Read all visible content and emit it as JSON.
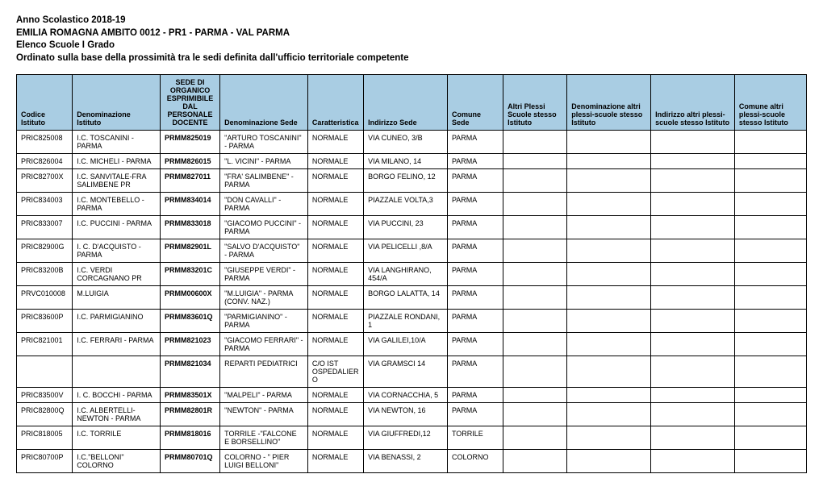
{
  "header": {
    "line1": "Anno Scolastico 2018-19",
    "line2": "EMILIA ROMAGNA AMBITO 0012 - PR1 - PARMA - VAL PARMA",
    "line3": "Elenco Scuole I Grado",
    "line4": "Ordinato sulla base della prossimità tra le sedi definita dall'ufficio territoriale competente"
  },
  "table": {
    "header_bg": "#a9cde3",
    "columns": [
      "Codice Istituto",
      "Denominazione Istituto",
      "SEDE DI ORGANICO ESPRIMIBILE DAL PERSONALE DOCENTE",
      "Denominazione Sede",
      "Caratteristica",
      "Indirizzo Sede",
      "Comune Sede",
      "Altri Plessi Scuole stesso Istituto",
      "Denominazione altri plessi-scuole stesso Istituto",
      "Indirizzo altri plessi-scuole stesso Istituto",
      "Comune altri plessi-scuole stesso Istituto"
    ],
    "rows": [
      [
        "PRIC825008",
        "I.C. TOSCANINI - PARMA",
        "PRMM825019",
        "\"ARTURO TOSCANINI\" - PARMA",
        "NORMALE",
        "VIA CUNEO, 3/B",
        "PARMA",
        "",
        "",
        "",
        ""
      ],
      [
        "PRIC826004",
        "I.C. MICHELI - PARMA",
        "PRMM826015",
        "\"L. VICINI\" - PARMA",
        "NORMALE",
        "VIA MILANO,  14",
        "PARMA",
        "",
        "",
        "",
        ""
      ],
      [
        "PRIC82700X",
        "I.C. SANVITALE-FRA SALIMBENE PR",
        "PRMM827011",
        "\"FRA' SALIMBENE\" - PARMA",
        "NORMALE",
        "BORGO FELINO, 12",
        "PARMA",
        "",
        "",
        "",
        ""
      ],
      [
        "PRIC834003",
        "I.C. MONTEBELLO - PARMA",
        "PRMM834014",
        "\"DON CAVALLI\" - PARMA",
        "NORMALE",
        "PIAZZALE VOLTA,3",
        "PARMA",
        "",
        "",
        "",
        ""
      ],
      [
        "PRIC833007",
        "I.C.  PUCCINI - PARMA",
        "PRMM833018",
        "\"GIACOMO PUCCINI\" - PARMA",
        "NORMALE",
        "VIA PUCCINI, 23",
        "PARMA",
        "",
        "",
        "",
        ""
      ],
      [
        "PRIC82900G",
        "I. C. D'ACQUISTO - PARMA",
        "PRMM82901L",
        "\"SALVO D'ACQUISTO\" - PARMA",
        "NORMALE",
        "VIA PELICELLI ,8/A",
        "PARMA",
        "",
        "",
        "",
        ""
      ],
      [
        "PRIC83200B",
        "I.C. VERDI CORCAGNANO PR",
        "PRMM83201C",
        "\"GIUSEPPE VERDI\" - PARMA",
        "NORMALE",
        "VIA LANGHIRANO, 454/A",
        "PARMA",
        "",
        "",
        "",
        ""
      ],
      [
        "PRVC010008",
        "M.LUIGIA",
        "PRMM00600X",
        "\"M.LUIGIA\" - PARMA (CONV. NAZ.)",
        "NORMALE",
        "BORGO LALATTA, 14",
        "PARMA",
        "",
        "",
        "",
        ""
      ],
      [
        "PRIC83600P",
        "I.C. PARMIGIANINO",
        "PRMM83601Q",
        "\"PARMIGIANINO\" - PARMA",
        "NORMALE",
        "PIAZZALE RONDANI, 1",
        "PARMA",
        "",
        "",
        "",
        ""
      ],
      [
        "PRIC821001",
        "I.C. FERRARI - PARMA",
        "PRMM821023",
        "\"GIACOMO FERRARI\" - PARMA",
        "NORMALE",
        "VIA GALILEI,10/A",
        "PARMA",
        "",
        "",
        "",
        ""
      ],
      [
        "",
        "",
        "PRMM821034",
        "REPARTI PEDIATRICI",
        "C/O IST OSPEDALIERO",
        "VIA GRAMSCI  14",
        "PARMA",
        "",
        "",
        "",
        ""
      ],
      [
        "PRIC83500V",
        "I. C.  BOCCHI -  PARMA",
        "PRMM83501X",
        "\"MALPELI\" - PARMA",
        "NORMALE",
        "VIA CORNACCHIA, 5",
        "PARMA",
        "",
        "",
        "",
        ""
      ],
      [
        "PRIC82800Q",
        "I.C. ALBERTELLI-NEWTON - PARMA",
        "PRMM82801R",
        "\"NEWTON\" - PARMA",
        "NORMALE",
        "VIA NEWTON, 16",
        "PARMA",
        "",
        "",
        "",
        ""
      ],
      [
        "PRIC818005",
        "I.C.  TORRILE",
        "PRMM818016",
        "TORRILE -\"FALCONE E BORSELLINO\"",
        "NORMALE",
        "VIA GIUFFREDI,12",
        "TORRILE",
        "",
        "",
        "",
        ""
      ],
      [
        "PRIC80700P",
        "I.C.\"BELLONI\"  COLORNO",
        "PRMM80701Q",
        "COLORNO - \" PIER LUIGI BELLONI\"",
        "NORMALE",
        "VIA BENASSI, 2",
        "COLORNO",
        "",
        "",
        "",
        ""
      ]
    ]
  }
}
